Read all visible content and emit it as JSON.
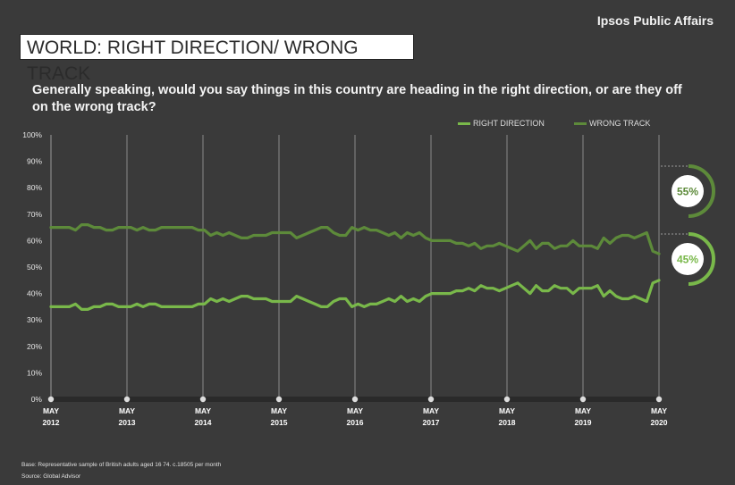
{
  "header": {
    "brand": "Ipsos Public Affairs"
  },
  "title": "WORLD: RIGHT DIRECTION/ WRONG TRACK",
  "question": "Generally speaking, would you say things in this country are heading in the right direction, or are they off on the wrong track?",
  "footnotes": {
    "base": "Base: Representative sample of British adults aged 16 74. c.18505 per month",
    "source": "Source: Global Advisor"
  },
  "colors": {
    "background": "#3a3a3a",
    "right_direction": "#79b84a",
    "wrong_track": "#5d8a3a",
    "grid": "#8a8a8a"
  },
  "callouts": {
    "wrong_track": "55%",
    "right_direction": "45%"
  },
  "chart_data": {
    "type": "line",
    "xlabel": "",
    "ylabel": "",
    "ylim": [
      0,
      100
    ],
    "y_ticks": [
      "0%",
      "10%",
      "20%",
      "30%",
      "40%",
      "50%",
      "60%",
      "70%",
      "80%",
      "90%",
      "100%"
    ],
    "x_ticks": [
      {
        "month": "MAY",
        "year": "2012"
      },
      {
        "month": "MAY",
        "year": "2013"
      },
      {
        "month": "MAY",
        "year": "2014"
      },
      {
        "month": "MAY",
        "year": "2015"
      },
      {
        "month": "MAY",
        "year": "2016"
      },
      {
        "month": "MAY",
        "year": "2017"
      },
      {
        "month": "MAY",
        "year": "2018"
      },
      {
        "month": "MAY",
        "year": "2019"
      },
      {
        "month": "MAY",
        "year": "2020"
      }
    ],
    "grid": true,
    "legend": "top-right",
    "series": [
      {
        "name": "RIGHT DIRECTION",
        "color": "#79b84a",
        "values": [
          35,
          35,
          35,
          35,
          36,
          34,
          34,
          35,
          35,
          36,
          36,
          35,
          35,
          35,
          36,
          35,
          36,
          36,
          35,
          35,
          35,
          35,
          35,
          35,
          36,
          36,
          38,
          37,
          38,
          37,
          38,
          39,
          39,
          38,
          38,
          38,
          37,
          37,
          37,
          37,
          39,
          38,
          37,
          36,
          35,
          35,
          37,
          38,
          38,
          35,
          36,
          35,
          36,
          36,
          37,
          38,
          37,
          39,
          37,
          38,
          37,
          39,
          40,
          40,
          40,
          40,
          41,
          41,
          42,
          41,
          43,
          42,
          42,
          41,
          42,
          43,
          44,
          42,
          40,
          43,
          41,
          41,
          43,
          42,
          42,
          40,
          42,
          42,
          42,
          43,
          39,
          41,
          39,
          38,
          38,
          39,
          38,
          37,
          44,
          45
        ]
      },
      {
        "name": "WRONG TRACK",
        "color": "#5d8a3a",
        "values": [
          65,
          65,
          65,
          65,
          64,
          66,
          66,
          65,
          65,
          64,
          64,
          65,
          65,
          65,
          64,
          65,
          64,
          64,
          65,
          65,
          65,
          65,
          65,
          65,
          64,
          64,
          62,
          63,
          62,
          63,
          62,
          61,
          61,
          62,
          62,
          62,
          63,
          63,
          63,
          63,
          61,
          62,
          63,
          64,
          65,
          65,
          63,
          62,
          62,
          65,
          64,
          65,
          64,
          64,
          63,
          62,
          63,
          61,
          63,
          62,
          63,
          61,
          60,
          60,
          60,
          60,
          59,
          59,
          58,
          59,
          57,
          58,
          58,
          59,
          58,
          57,
          56,
          58,
          60,
          57,
          59,
          59,
          57,
          58,
          58,
          60,
          58,
          58,
          58,
          57,
          61,
          59,
          61,
          62,
          62,
          61,
          62,
          63,
          56,
          55
        ]
      }
    ]
  }
}
